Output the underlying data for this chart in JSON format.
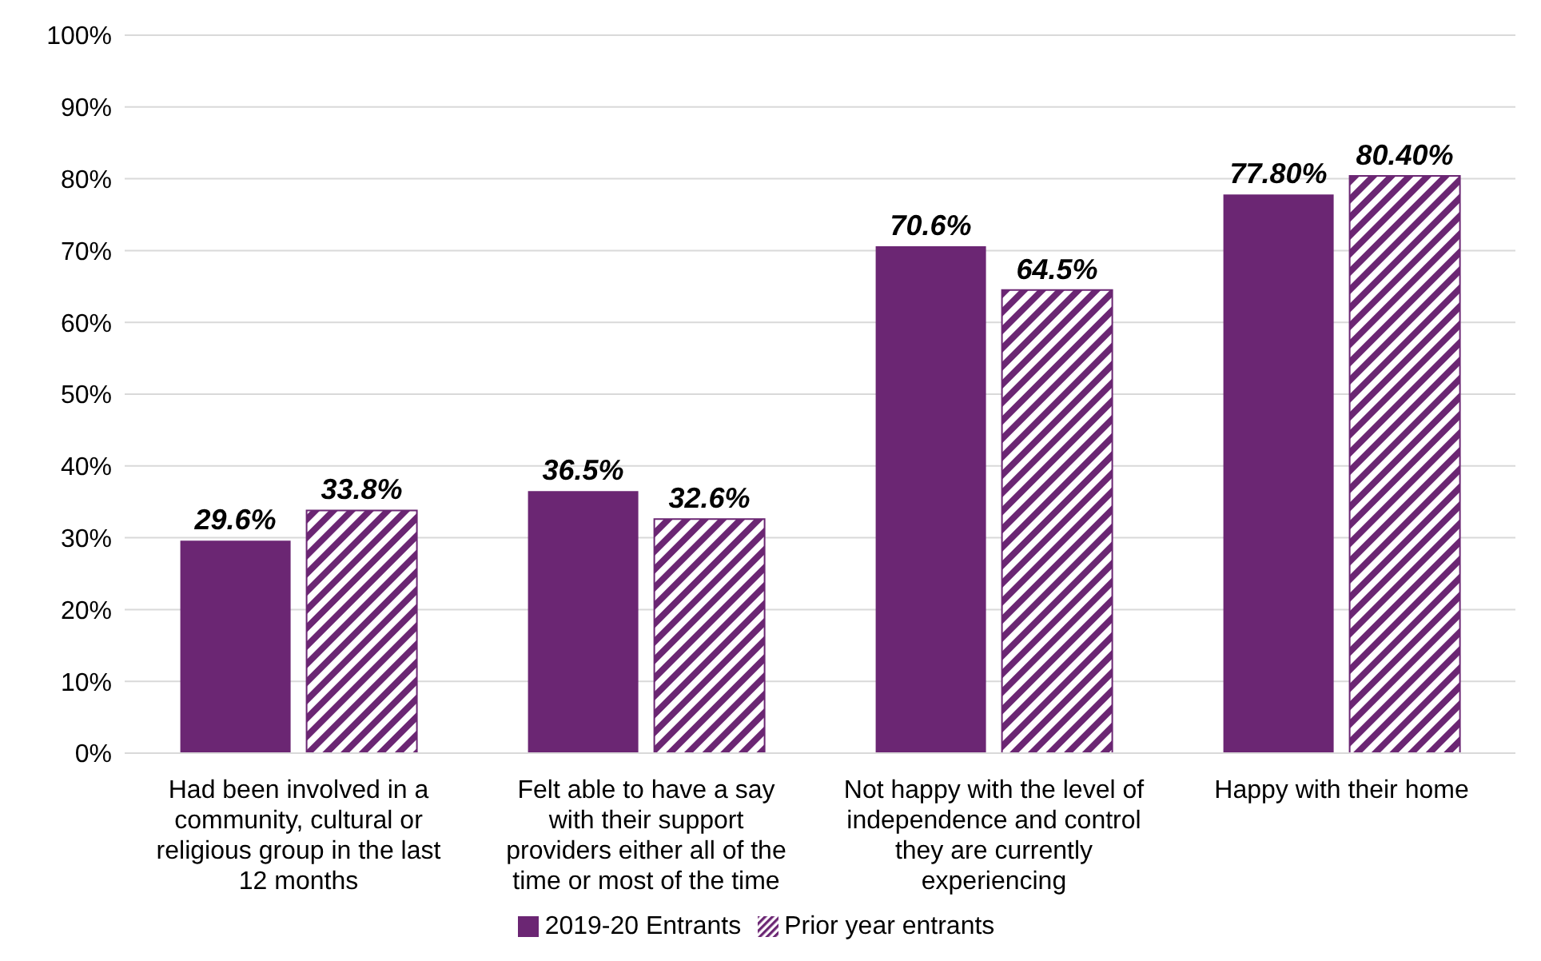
{
  "chart_data": {
    "type": "bar",
    "categories": [
      "Had been involved in a community, cultural or religious group in the last 12 months",
      "Felt able to have a say with their support providers either all of the time or most of the time",
      "Not happy with the level of independence and control they are currently experiencing",
      "Happy with their home"
    ],
    "series": [
      {
        "name": "2019-20 Entrants",
        "color": "#6b2673",
        "values": [
          29.6,
          36.5,
          70.6,
          77.8
        ],
        "value_labels": [
          "29.6%",
          "36.5%",
          "70.6%",
          "77.80%"
        ]
      },
      {
        "name": "Prior year entrants",
        "color": "#6b2673",
        "values": [
          33.8,
          32.6,
          64.5,
          80.4
        ],
        "value_labels": [
          "33.8%",
          "32.6%",
          "64.5%",
          "80.40%"
        ]
      }
    ],
    "ylim": [
      0,
      100
    ],
    "yticks": [
      {
        "value": 0,
        "label": "0%"
      },
      {
        "value": 10,
        "label": "10%"
      },
      {
        "value": 20,
        "label": "20%"
      },
      {
        "value": 30,
        "label": "30%"
      },
      {
        "value": 40,
        "label": "40%"
      },
      {
        "value": 50,
        "label": "50%"
      },
      {
        "value": 60,
        "label": "60%"
      },
      {
        "value": 70,
        "label": "70%"
      },
      {
        "value": 80,
        "label": "80%"
      },
      {
        "value": 90,
        "label": "90%"
      },
      {
        "value": 100,
        "label": "100%"
      }
    ],
    "grid": "y",
    "legend": "bottom"
  }
}
